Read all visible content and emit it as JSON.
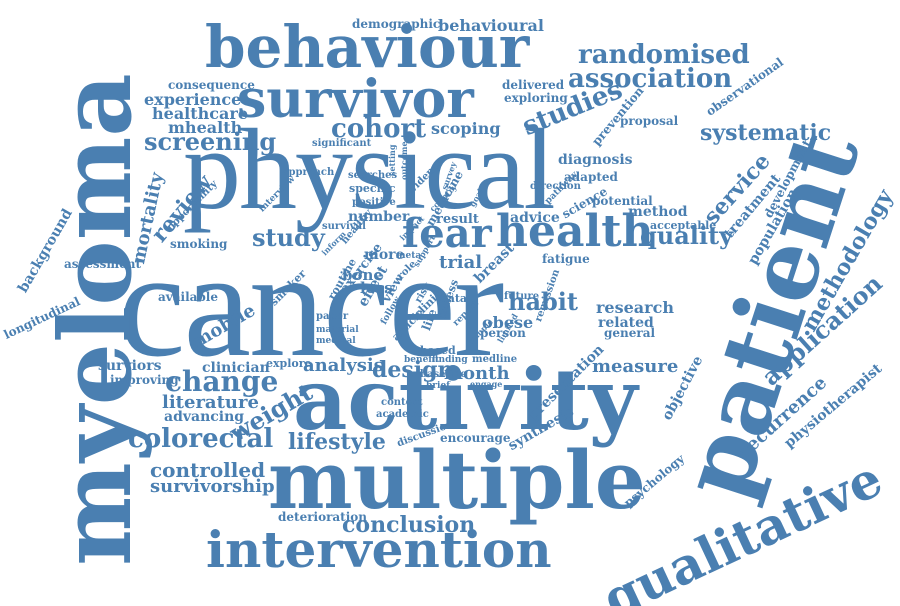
{
  "color": "#4a7fb1",
  "words": [
    "cancer",
    "physical",
    "myeloma",
    "patient",
    "activity",
    "multiple",
    "behaviour",
    "survivor",
    "intervention",
    "qualitative",
    "health",
    "fear",
    "cohort",
    "studies",
    "randomised",
    "association",
    "screening",
    "review",
    "study",
    "systematic",
    "change",
    "methodology",
    "application",
    "colorectal",
    "lifestyle",
    "weight",
    "controlled",
    "survivorship",
    "conclusion",
    "service",
    "quality",
    "mhealth",
    "healthcare",
    "experience",
    "scoping",
    "mortality",
    "mobile",
    "habit",
    "design",
    "analysis",
    "literature",
    "recurrence",
    "physiotherapist",
    "measure",
    "objective",
    "research",
    "related",
    "population",
    "treatment",
    "method",
    "diagnosis",
    "adapted",
    "potential",
    "acceptable",
    "development",
    "prevention",
    "proposal",
    "observational",
    "demographic",
    "behavioural",
    "consequence",
    "delivered",
    "exploring",
    "significant",
    "approach",
    "specific",
    "result",
    "positive",
    "searches",
    "number",
    "survival",
    "healthy",
    "smoking",
    "opportunity",
    "interview",
    "assessment",
    "background",
    "longitudinal",
    "available",
    "clinician",
    "explore",
    "improving",
    "advancing",
    "surviors",
    "month",
    "bone",
    "exercise",
    "material",
    "medical",
    "loss",
    "effect",
    "view",
    "trial",
    "breast",
    "fatigue",
    "data",
    "fitness",
    "obese",
    "person",
    "remission",
    "future",
    "general",
    "synthesis",
    "encourage",
    "discussion",
    "academic",
    "context",
    "presentation",
    "psychology",
    "deterioration",
    "clinic",
    "article",
    "follow",
    "paper",
    "routine",
    "smoker",
    "baseline",
    "finding",
    "based",
    "benefit",
    "medline",
    "role",
    "risk",
    "life",
    "more",
    "advice",
    "science",
    "direction",
    "pathway",
    "evidence",
    "medicine",
    "outcome",
    "setting",
    "survey",
    "report",
    "goal",
    "meta",
    "inform",
    "brief",
    "country",
    "sample",
    "limited",
    "engage",
    "support",
    "impact"
  ]
}
